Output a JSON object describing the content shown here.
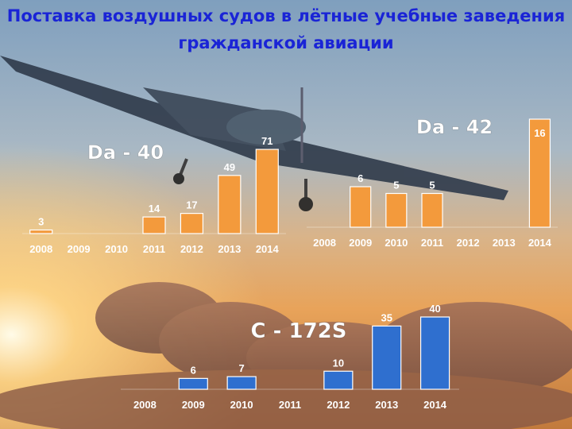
{
  "title": {
    "line1": "Поставка воздушных судов в лётные учебные заведения",
    "line2": "гражданской авиации"
  },
  "colors": {
    "title": "#1a24d6",
    "orange_bar": "#f39a3c",
    "blue_bar": "#2f6fcf",
    "label": "#ffffff"
  },
  "chart_data": [
    {
      "type": "bar",
      "title": "Da - 40",
      "categories": [
        "2008",
        "2009",
        "2010",
        "2011",
        "2012",
        "2013",
        "2014"
      ],
      "values": [
        3,
        0,
        0,
        14,
        17,
        49,
        71
      ],
      "value_labels": [
        "3",
        "",
        "",
        "14",
        "17",
        "49",
        "71"
      ],
      "color": "#f39a3c",
      "ylim": [
        0,
        71
      ]
    },
    {
      "type": "bar",
      "title": "Da - 42",
      "categories": [
        "2008",
        "2009",
        "2010",
        "2011",
        "2012",
        "2013",
        "2014"
      ],
      "values": [
        0,
        6,
        5,
        5,
        0,
        0,
        16
      ],
      "value_labels": [
        "",
        "6",
        "5",
        "5",
        "",
        "",
        "16"
      ],
      "color": "#f39a3c",
      "ylim": [
        0,
        16
      ]
    },
    {
      "type": "bar",
      "title": "C - 172S",
      "categories": [
        "2008",
        "2009",
        "2010",
        "2011",
        "2012",
        "2013",
        "2014"
      ],
      "values": [
        0,
        6,
        7,
        0,
        10,
        35,
        40
      ],
      "value_labels": [
        "",
        "6",
        "7",
        "",
        "10",
        "35",
        "40"
      ],
      "color": "#2f6fcf",
      "ylim": [
        0,
        40
      ]
    }
  ]
}
